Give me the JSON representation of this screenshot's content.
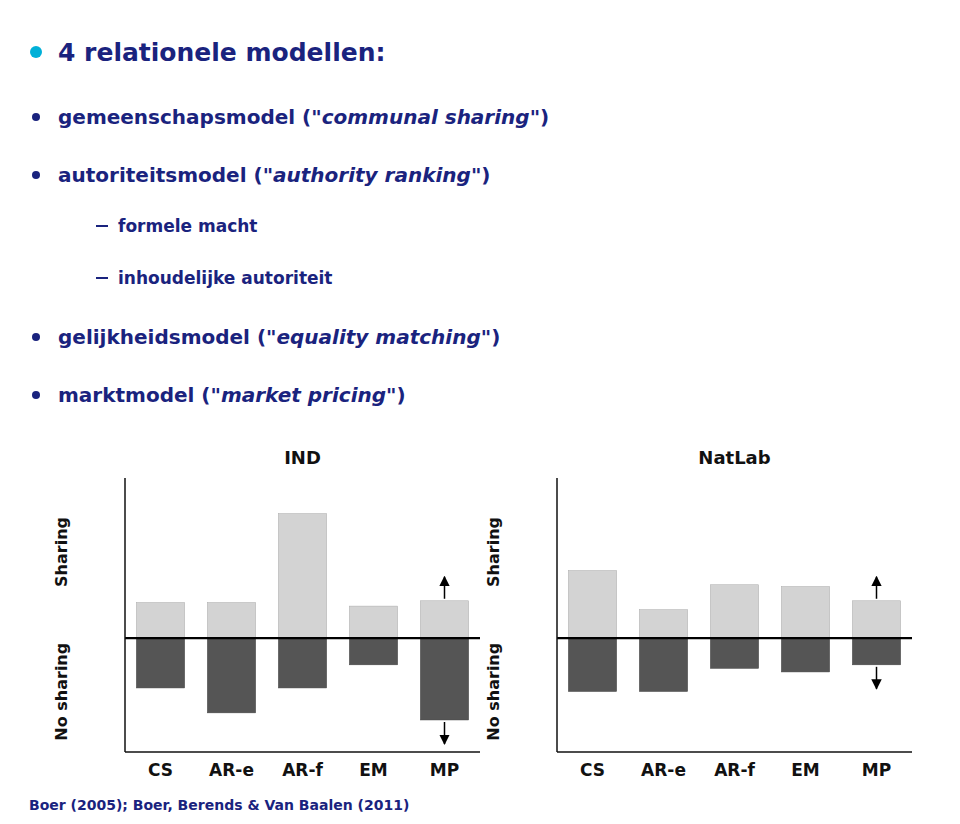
{
  "slide": {
    "title": "4 relationele modellen:",
    "items": [
      {
        "text": "gemeenschapsmodel (",
        "italic": "\"communal sharing\"",
        "end": ")"
      },
      {
        "text": "autoriteitsmodel (",
        "italic": "\"authority ranking\"",
        "end": ")",
        "sub": [
          "formele macht",
          "inhoudelijke autoriteit"
        ]
      },
      {
        "text": "gelijkheidsmodel (",
        "italic": "\"equality matching\"",
        "end": ")"
      },
      {
        "text": "marktmodel (",
        "italic": "\"market pricing\"",
        "end": ")"
      }
    ],
    "footer": "Boer (2005); Boer, Berends & Van Baalen (2011)"
  },
  "chart_data": [
    {
      "type": "bar",
      "title": "IND",
      "categories": [
        "CS",
        "AR-e",
        "AR-f",
        "EM",
        "MP"
      ],
      "series": [
        {
          "name": "Sharing",
          "color": "#d3d3d3",
          "values": [
            1.0,
            1.0,
            3.5,
            0.9,
            1.05
          ]
        },
        {
          "name": "No sharing",
          "color": "#555555",
          "values": [
            -1.4,
            -2.1,
            -1.4,
            -0.75,
            -2.3
          ]
        }
      ],
      "ylim": [
        -3.2,
        4.5
      ],
      "yticks": [],
      "tick_labels": "x",
      "annotations": [
        {
          "category": "MP",
          "series": 0,
          "arrow": "up"
        },
        {
          "category": "MP",
          "series": 1,
          "arrow": "down"
        }
      ]
    },
    {
      "type": "bar",
      "title": "NatLab",
      "categories": [
        "CS",
        "AR-e",
        "AR-f",
        "EM",
        "MP"
      ],
      "series": [
        {
          "name": "Sharing",
          "color": "#d3d3d3",
          "values": [
            1.9,
            0.8,
            1.5,
            1.45,
            1.05
          ]
        },
        {
          "name": "No sharing",
          "color": "#555555",
          "values": [
            -1.5,
            -1.5,
            -0.85,
            -0.95,
            -0.75
          ]
        }
      ],
      "ylim": [
        -3.2,
        4.5
      ],
      "yticks": [],
      "tick_labels": "x",
      "annotations": [
        {
          "category": "MP",
          "series": 0,
          "arrow": "up"
        },
        {
          "category": "MP",
          "series": 1,
          "arrow": "down"
        }
      ]
    }
  ]
}
